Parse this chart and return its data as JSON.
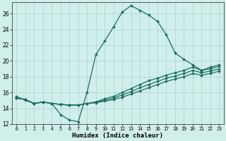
{
  "xlabel": "Humidex (Indice chaleur)",
  "bg_color": "#d0eeea",
  "line_color": "#1a6e62",
  "grid_color": "#aad4ce",
  "xlim_min": -0.5,
  "xlim_max": 23.5,
  "ylim_min": 12,
  "ylim_max": 27.4,
  "xticks": [
    0,
    1,
    2,
    3,
    4,
    5,
    6,
    7,
    8,
    9,
    10,
    11,
    12,
    13,
    14,
    15,
    16,
    17,
    18,
    19,
    20,
    21,
    22,
    23
  ],
  "yticks": [
    12,
    14,
    16,
    18,
    20,
    22,
    24,
    26
  ],
  "lines": [
    {
      "x": [
        0,
        1,
        2,
        3,
        4,
        5,
        6,
        7,
        8,
        9,
        10,
        11,
        12,
        13,
        14,
        15,
        16,
        17,
        18,
        19,
        20,
        21,
        22,
        23
      ],
      "y": [
        15.5,
        15.0,
        14.6,
        14.8,
        14.6,
        13.2,
        12.5,
        12.3,
        16.0,
        20.8,
        22.5,
        24.3,
        26.2,
        27.0,
        26.4,
        25.8,
        25.0,
        23.3,
        21.0,
        20.2,
        19.5,
        18.8,
        19.2,
        19.5
      ]
    },
    {
      "x": [
        0,
        1,
        2,
        3,
        4,
        5,
        6,
        7,
        8,
        9,
        10,
        11,
        12,
        13,
        14,
        15,
        16,
        17,
        18,
        19,
        20,
        21,
        22,
        23
      ],
      "y": [
        15.3,
        15.1,
        14.6,
        14.8,
        14.6,
        14.5,
        14.4,
        14.4,
        14.6,
        14.8,
        15.2,
        15.5,
        16.0,
        16.5,
        17.0,
        17.5,
        17.8,
        18.2,
        18.5,
        18.8,
        19.2,
        18.8,
        19.0,
        19.3
      ]
    },
    {
      "x": [
        0,
        1,
        2,
        3,
        4,
        5,
        6,
        7,
        8,
        9,
        10,
        11,
        12,
        13,
        14,
        15,
        16,
        17,
        18,
        19,
        20,
        21,
        22,
        23
      ],
      "y": [
        15.3,
        15.1,
        14.6,
        14.8,
        14.6,
        14.5,
        14.4,
        14.4,
        14.6,
        14.8,
        15.0,
        15.3,
        15.7,
        16.1,
        16.6,
        17.0,
        17.4,
        17.8,
        18.1,
        18.4,
        18.8,
        18.5,
        18.7,
        19.0
      ]
    },
    {
      "x": [
        0,
        1,
        2,
        3,
        4,
        5,
        6,
        7,
        8,
        9,
        10,
        11,
        12,
        13,
        14,
        15,
        16,
        17,
        18,
        19,
        20,
        21,
        22,
        23
      ],
      "y": [
        15.3,
        15.1,
        14.6,
        14.8,
        14.6,
        14.5,
        14.4,
        14.4,
        14.6,
        14.7,
        14.9,
        15.1,
        15.4,
        15.8,
        16.2,
        16.6,
        17.0,
        17.4,
        17.7,
        18.0,
        18.4,
        18.2,
        18.4,
        18.7
      ]
    }
  ]
}
